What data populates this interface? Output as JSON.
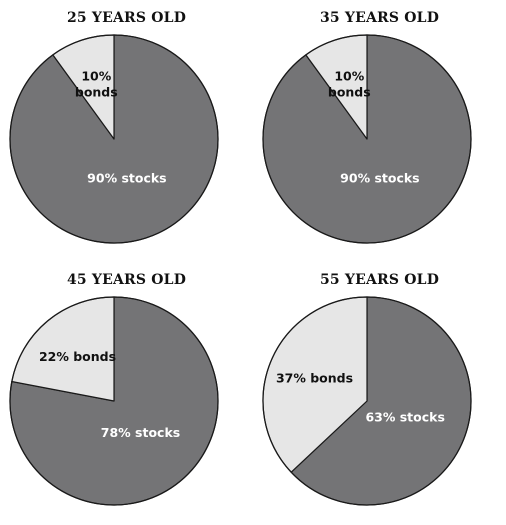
{
  "chart_data": [
    {
      "type": "pie",
      "title": "25 YEARS OLD",
      "slices": [
        {
          "label": "90% stocks",
          "value": 90,
          "color": "#747476",
          "text_color": "#ffffff"
        },
        {
          "label": "10%\nbonds",
          "value": 10,
          "color": "#e6e6e6",
          "text_color": "#111111"
        }
      ]
    },
    {
      "type": "pie",
      "title": "35 YEARS OLD",
      "slices": [
        {
          "label": "90% stocks",
          "value": 90,
          "color": "#747476",
          "text_color": "#ffffff"
        },
        {
          "label": "10%\nbonds",
          "value": 10,
          "color": "#e6e6e6",
          "text_color": "#111111"
        }
      ]
    },
    {
      "type": "pie",
      "title": "45 YEARS OLD",
      "slices": [
        {
          "label": "78% stocks",
          "value": 78,
          "color": "#747476",
          "text_color": "#ffffff"
        },
        {
          "label": "22% bonds",
          "value": 22,
          "color": "#e6e6e6",
          "text_color": "#111111"
        }
      ]
    },
    {
      "type": "pie",
      "title": "55 YEARS OLD",
      "slices": [
        {
          "label": "63% stocks",
          "value": 63,
          "color": "#747476",
          "text_color": "#ffffff"
        },
        {
          "label": "37% bonds",
          "value": 37,
          "color": "#e6e6e6",
          "text_color": "#111111"
        }
      ]
    }
  ]
}
